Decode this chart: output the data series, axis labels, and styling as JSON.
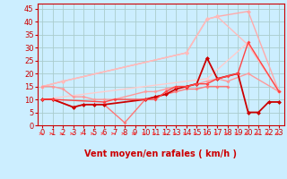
{
  "background_color": "#cceeff",
  "grid_color": "#aacccc",
  "xlabel": "Vent moyen/en rafales ( km/h )",
  "xlim": [
    -0.5,
    23.5
  ],
  "ylim": [
    0,
    47
  ],
  "yticks": [
    0,
    5,
    10,
    15,
    20,
    25,
    30,
    35,
    40,
    45
  ],
  "xticks": [
    0,
    1,
    2,
    3,
    4,
    5,
    6,
    7,
    8,
    9,
    10,
    11,
    12,
    13,
    14,
    15,
    16,
    17,
    18,
    19,
    20,
    21,
    22,
    23
  ],
  "lines": [
    {
      "segments": [
        [
          0,
          15
        ],
        [
          2,
          17
        ],
        [
          14,
          28
        ],
        [
          16,
          41
        ],
        [
          17,
          42
        ],
        [
          20,
          44
        ],
        [
          23,
          13
        ]
      ],
      "color": "#ffaaaa",
      "lw": 1.0,
      "ms": 2.5
    },
    {
      "segments": [
        [
          0,
          15
        ],
        [
          2,
          17
        ],
        [
          14,
          28
        ],
        [
          16,
          41
        ],
        [
          17,
          42
        ],
        [
          20,
          31
        ],
        [
          23,
          13
        ]
      ],
      "color": "#ffbbbb",
      "lw": 1.0,
      "ms": 2.5
    },
    {
      "segments": [
        [
          0,
          10
        ],
        [
          16,
          18
        ],
        [
          20,
          32
        ],
        [
          23,
          13
        ]
      ],
      "color": "#ffcccc",
      "lw": 1.0,
      "ms": 2.0
    },
    {
      "segments": [
        [
          0,
          15
        ],
        [
          1,
          15
        ],
        [
          2,
          14
        ],
        [
          3,
          11
        ],
        [
          4,
          11
        ],
        [
          5,
          10
        ],
        [
          6,
          10
        ],
        [
          7,
          10
        ],
        [
          10,
          13
        ],
        [
          11,
          13
        ],
        [
          12,
          14
        ],
        [
          13,
          15
        ],
        [
          14,
          15
        ],
        [
          15,
          16
        ],
        [
          16,
          17
        ],
        [
          17,
          18
        ],
        [
          18,
          17
        ],
        [
          20,
          20
        ],
        [
          23,
          13
        ]
      ],
      "color": "#ff9999",
      "lw": 1.0,
      "ms": 2.0
    },
    {
      "segments": [
        [
          0,
          10
        ],
        [
          1,
          10
        ],
        [
          3,
          7
        ],
        [
          4,
          8
        ],
        [
          5,
          8
        ],
        [
          6,
          8
        ],
        [
          8,
          1
        ],
        [
          10,
          10
        ],
        [
          11,
          11
        ],
        [
          12,
          12
        ],
        [
          13,
          13
        ],
        [
          14,
          14
        ],
        [
          15,
          14
        ],
        [
          16,
          15
        ],
        [
          17,
          15
        ],
        [
          18,
          15
        ]
      ],
      "color": "#ff7777",
      "lw": 1.0,
      "ms": 2.0
    },
    {
      "segments": [
        [
          0,
          10
        ],
        [
          1,
          10
        ],
        [
          3,
          7
        ],
        [
          4,
          8
        ],
        [
          5,
          8
        ],
        [
          6,
          8
        ],
        [
          10,
          10
        ],
        [
          11,
          11
        ],
        [
          12,
          12
        ],
        [
          13,
          14
        ],
        [
          14,
          15
        ],
        [
          15,
          16
        ],
        [
          16,
          26
        ],
        [
          17,
          18
        ],
        [
          19,
          20
        ],
        [
          20,
          5
        ],
        [
          21,
          5
        ],
        [
          22,
          9
        ],
        [
          23,
          9
        ]
      ],
      "color": "#cc0000",
      "lw": 1.3,
      "ms": 2.5
    },
    {
      "segments": [
        [
          0,
          10
        ],
        [
          1,
          10
        ],
        [
          6,
          9
        ],
        [
          7,
          10
        ],
        [
          10,
          10
        ],
        [
          11,
          10
        ],
        [
          12,
          13
        ],
        [
          13,
          15
        ],
        [
          14,
          15
        ],
        [
          15,
          16
        ],
        [
          16,
          16
        ],
        [
          17,
          18
        ],
        [
          18,
          19
        ],
        [
          19,
          20
        ],
        [
          20,
          32
        ],
        [
          23,
          13
        ]
      ],
      "color": "#ff4444",
      "lw": 1.0,
      "ms": 2.0
    }
  ],
  "arrow_color": "#ff5555",
  "xlabel_color": "#cc0000",
  "tick_color": "#cc0000",
  "label_fontsize": 7,
  "tick_fontsize": 6
}
